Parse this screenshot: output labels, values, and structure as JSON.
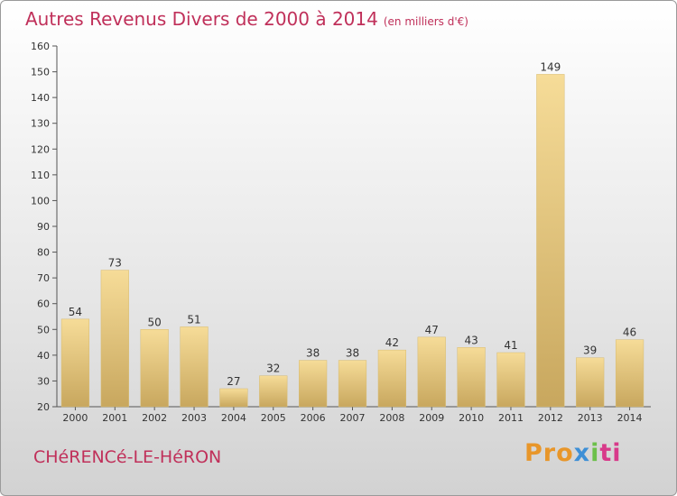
{
  "title": "Autres Revenus Divers de 2000 à 2014",
  "title_unit": "(en milliers d'€)",
  "town": "CHéRENCé-LE-HéRON",
  "logo": {
    "p1": "Pro",
    "p2": "x",
    "p3": "i",
    "p4": "ti"
  },
  "colors": {
    "accent": "#c0305a",
    "bar": "#e6c77a"
  },
  "chart_data": {
    "type": "bar",
    "categories": [
      "2000",
      "2001",
      "2002",
      "2003",
      "2004",
      "2005",
      "2006",
      "2007",
      "2008",
      "2009",
      "2010",
      "2011",
      "2012",
      "2013",
      "2014"
    ],
    "values": [
      54,
      73,
      50,
      51,
      27,
      32,
      38,
      38,
      42,
      47,
      43,
      41,
      149,
      39,
      46
    ],
    "ylim": [
      20,
      160
    ],
    "yticks": [
      20,
      30,
      40,
      50,
      60,
      70,
      80,
      90,
      100,
      110,
      120,
      130,
      140,
      150,
      160
    ],
    "grid": false,
    "legend": "none",
    "data_labels": true
  }
}
